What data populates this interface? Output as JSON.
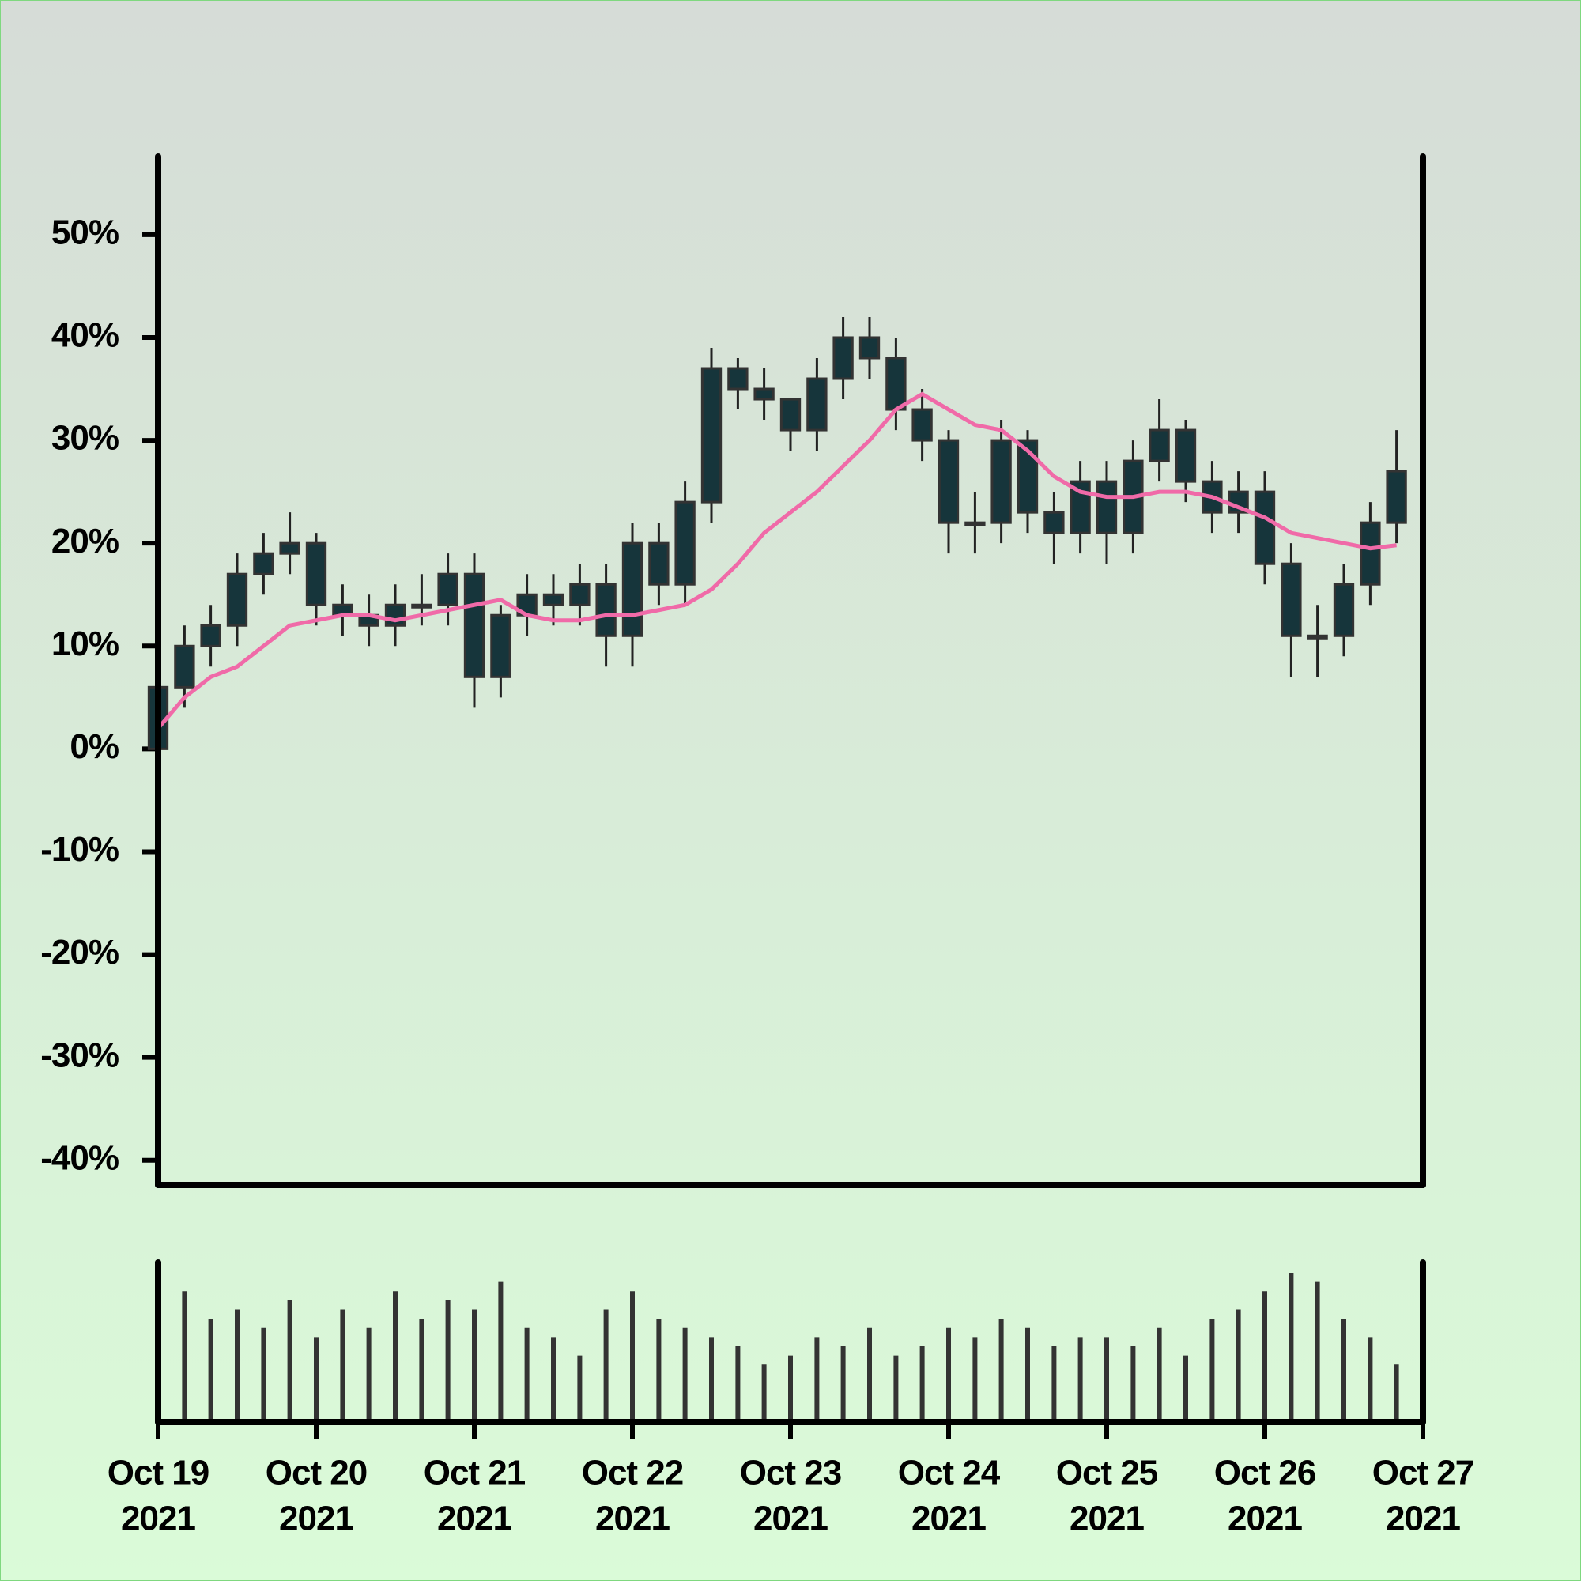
{
  "chart_data": {
    "type": "candlestick",
    "x": [
      0,
      0.167,
      0.333,
      0.5,
      0.667,
      0.833,
      1,
      1.167,
      1.333,
      1.5,
      1.667,
      1.833,
      2,
      2.167,
      2.333,
      2.5,
      2.667,
      2.833,
      3,
      3.167,
      3.333,
      3.5,
      3.667,
      3.833,
      4,
      4.167,
      4.333,
      4.5,
      4.667,
      4.833,
      5,
      5.167,
      5.333,
      5.5,
      5.667,
      5.833,
      6,
      6.167,
      6.333,
      6.5,
      6.667,
      6.833,
      7,
      7.167,
      7.333,
      7.5,
      7.667,
      7.833
    ],
    "open": [
      0,
      6,
      10,
      12,
      17,
      19,
      20,
      14,
      13,
      12,
      14,
      14,
      17,
      7,
      13,
      15,
      14,
      16,
      11,
      20,
      16,
      24,
      37,
      35,
      34,
      31,
      36,
      40,
      38,
      33,
      30,
      22,
      22,
      30,
      23,
      21,
      26,
      21,
      28,
      31,
      26,
      23,
      25,
      18,
      11,
      11,
      16,
      22
    ],
    "high": [
      8,
      12,
      14,
      19,
      21,
      23,
      21,
      16,
      15,
      16,
      17,
      19,
      19,
      14,
      17,
      17,
      18,
      18,
      22,
      22,
      26,
      39,
      38,
      37,
      34,
      38,
      42,
      42,
      40,
      35,
      31,
      25,
      32,
      31,
      25,
      28,
      28,
      30,
      34,
      32,
      28,
      27,
      27,
      20,
      14,
      18,
      24,
      31
    ],
    "low": [
      -1,
      4,
      8,
      10,
      15,
      17,
      12,
      11,
      10,
      10,
      12,
      12,
      4,
      5,
      11,
      12,
      12,
      8,
      8,
      14,
      14,
      22,
      33,
      32,
      29,
      29,
      34,
      36,
      31,
      28,
      19,
      19,
      20,
      21,
      18,
      19,
      18,
      19,
      26,
      24,
      21,
      21,
      16,
      7,
      7,
      9,
      14,
      20
    ],
    "close": [
      6,
      10,
      12,
      17,
      19,
      20,
      14,
      13,
      12,
      14,
      14,
      17,
      7,
      13,
      15,
      14,
      16,
      11,
      20,
      16,
      24,
      37,
      35,
      34,
      31,
      36,
      40,
      38,
      33,
      30,
      22,
      22,
      30,
      23,
      21,
      26,
      21,
      28,
      31,
      26,
      23,
      25,
      18,
      11,
      11,
      16,
      22,
      27
    ],
    "candle_color": "#16353b",
    "moving_average": {
      "color": "#f06aa8",
      "values": [
        2,
        5,
        7,
        8,
        10,
        12,
        12.5,
        13,
        13,
        12.5,
        13,
        13.5,
        14,
        14.5,
        13,
        12.5,
        12.5,
        13,
        13,
        13.5,
        14,
        15.5,
        18,
        21,
        23,
        25,
        27.5,
        30,
        33,
        34.5,
        33,
        31.5,
        31,
        29,
        26.5,
        25,
        24.5,
        24.5,
        25,
        25,
        24.5,
        23.5,
        22.5,
        21,
        20.5,
        20,
        19.5,
        19.8
      ]
    },
    "volume": {
      "color": "#333333",
      "values": [
        40,
        70,
        55,
        60,
        50,
        65,
        45,
        60,
        50,
        70,
        55,
        65,
        60,
        75,
        50,
        45,
        35,
        60,
        70,
        55,
        50,
        45,
        40,
        30,
        35,
        45,
        40,
        50,
        35,
        40,
        50,
        45,
        55,
        50,
        40,
        45,
        45,
        40,
        50,
        35,
        55,
        60,
        70,
        80,
        75,
        55,
        45,
        30
      ]
    },
    "xlim": [
      0,
      8
    ],
    "xticks": [
      {
        "value": 0,
        "label": [
          "Oct 19",
          "2021"
        ]
      },
      {
        "value": 1,
        "label": [
          "Oct 20",
          "2021"
        ]
      },
      {
        "value": 2,
        "label": [
          "Oct 21",
          "2021"
        ]
      },
      {
        "value": 3,
        "label": [
          "Oct 22",
          "2021"
        ]
      },
      {
        "value": 4,
        "label": [
          "Oct 23",
          "2021"
        ]
      },
      {
        "value": 5,
        "label": [
          "Oct 24",
          "2021"
        ]
      },
      {
        "value": 6,
        "label": [
          "Oct 25",
          "2021"
        ]
      },
      {
        "value": 7,
        "label": [
          "Oct 26",
          "2021"
        ]
      },
      {
        "value": 8,
        "label": [
          "Oct 27",
          "2021"
        ]
      }
    ],
    "ylim": [
      -42.4,
      57.6
    ],
    "yticks": [
      {
        "value": -40,
        "label": "-40%"
      },
      {
        "value": -30,
        "label": "-30%"
      },
      {
        "value": -20,
        "label": "-20%"
      },
      {
        "value": -10,
        "label": "-10%"
      },
      {
        "value": 0,
        "label": "0%"
      },
      {
        "value": 10,
        "label": "10%"
      },
      {
        "value": 20,
        "label": "20%"
      },
      {
        "value": 30,
        "label": "30%"
      },
      {
        "value": 40,
        "label": "40%"
      },
      {
        "value": 50,
        "label": "50%"
      }
    ]
  }
}
